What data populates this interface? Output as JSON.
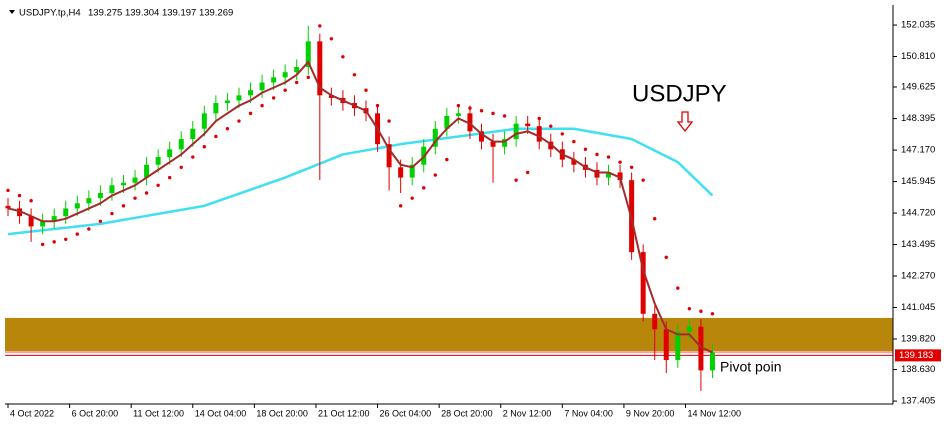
{
  "chart_data": {
    "type": "candlestick",
    "symbol": "USDJPY.tp,H4",
    "ohlc_text": "139.275 139.304 139.197 139.269",
    "annotation": "USDJPY",
    "pivot_label": "Pivot poin",
    "up_color": "#00d000",
    "down_color": "#e00000",
    "x": [
      0,
      3,
      6,
      9,
      12,
      15,
      18,
      21,
      24,
      27,
      30,
      33,
      36,
      39,
      42,
      45,
      48,
      51,
      54,
      57,
      60,
      63,
      66,
      69,
      72,
      75,
      78,
      81,
      84,
      87,
      90,
      93,
      96,
      99,
      102,
      105,
      108,
      111,
      114,
      117,
      120,
      123,
      126,
      129,
      132,
      135,
      138,
      141,
      144,
      147,
      150,
      153,
      156,
      159,
      162,
      165,
      168,
      171,
      174,
      177,
      180,
      183
    ],
    "open": [
      145.0,
      144.9,
      144.6,
      144.2,
      144.4,
      144.6,
      144.9,
      145.1,
      145.3,
      145.5,
      145.8,
      145.9,
      146.1,
      146.6,
      146.9,
      147.2,
      147.6,
      148.0,
      148.6,
      149.0,
      149.1,
      149.3,
      149.5,
      149.8,
      150.0,
      150.2,
      150.4,
      151.4,
      149.3,
      149.2,
      149.0,
      148.8,
      148.6,
      147.4,
      146.5,
      146.1,
      146.6,
      147.3,
      148.0,
      148.5,
      148.6,
      147.9,
      147.5,
      147.3,
      147.6,
      148.2,
      148.1,
      147.5,
      147.2,
      146.8,
      146.6,
      146.4,
      146.1,
      146.3,
      146.0,
      143.2,
      140.8,
      140.2,
      139.0,
      140.1,
      140.3,
      138.6
    ],
    "high": [
      145.3,
      145.2,
      144.9,
      144.7,
      144.9,
      145.2,
      145.4,
      145.6,
      145.8,
      146.1,
      146.2,
      146.4,
      146.9,
      147.2,
      147.5,
      147.9,
      148.3,
      148.9,
      149.3,
      149.4,
      149.6,
      149.8,
      150.1,
      150.3,
      150.5,
      150.7,
      152.0,
      151.7,
      149.6,
      149.5,
      149.3,
      149.1,
      148.9,
      147.7,
      146.8,
      146.9,
      147.6,
      148.3,
      148.8,
      148.9,
      148.9,
      148.2,
      147.8,
      147.9,
      148.5,
      148.5,
      148.4,
      147.8,
      147.5,
      147.1,
      146.9,
      146.7,
      146.6,
      146.6,
      146.3,
      143.5,
      141.1,
      140.5,
      140.4,
      140.6,
      140.6,
      139.6
    ],
    "low": [
      144.6,
      144.3,
      143.6,
      143.9,
      144.1,
      144.3,
      144.6,
      144.8,
      145.0,
      145.2,
      145.5,
      145.6,
      145.8,
      146.3,
      146.6,
      146.9,
      147.3,
      147.7,
      148.3,
      148.7,
      148.8,
      149.0,
      149.2,
      149.5,
      149.7,
      149.9,
      150.1,
      146.0,
      148.9,
      148.7,
      148.5,
      148.3,
      147.1,
      145.6,
      145.5,
      145.8,
      146.3,
      147.0,
      147.7,
      148.2,
      147.6,
      147.2,
      145.9,
      147.0,
      147.3,
      147.8,
      147.2,
      146.9,
      146.5,
      146.3,
      146.1,
      145.8,
      145.8,
      145.7,
      142.9,
      140.5,
      139.0,
      138.5,
      138.7,
      139.8,
      137.8,
      138.3
    ],
    "close": [
      144.9,
      144.6,
      144.2,
      144.4,
      144.6,
      144.9,
      145.1,
      145.3,
      145.5,
      145.8,
      145.9,
      146.1,
      146.6,
      146.9,
      147.2,
      147.6,
      148.0,
      148.6,
      149.0,
      149.1,
      149.3,
      149.5,
      149.8,
      150.0,
      150.2,
      150.4,
      151.4,
      149.3,
      149.2,
      149.0,
      148.8,
      148.6,
      147.4,
      146.5,
      146.1,
      146.6,
      147.3,
      148.0,
      148.5,
      148.6,
      147.9,
      147.5,
      147.3,
      147.6,
      148.2,
      148.1,
      147.5,
      147.2,
      146.8,
      146.6,
      146.4,
      146.1,
      146.3,
      146.0,
      143.2,
      140.8,
      140.2,
      139.0,
      140.1,
      140.3,
      138.6,
      139.3
    ],
    "ma_fast": {
      "color": "#a52a2a",
      "values": [
        144.9,
        144.8,
        144.6,
        144.4,
        144.4,
        144.5,
        144.7,
        144.9,
        145.1,
        145.4,
        145.6,
        145.8,
        146.1,
        146.4,
        146.7,
        147.0,
        147.4,
        147.8,
        148.3,
        148.6,
        148.9,
        149.1,
        149.4,
        149.6,
        149.8,
        150.1,
        150.6,
        149.6,
        149.3,
        149.1,
        148.9,
        148.7,
        148.0,
        147.2,
        146.6,
        146.5,
        146.9,
        147.5,
        148.0,
        148.4,
        148.2,
        147.8,
        147.5,
        147.5,
        147.8,
        147.9,
        147.7,
        147.4,
        147.0,
        146.8,
        146.5,
        146.3,
        146.3,
        146.1,
        144.5,
        142.5,
        141.2,
        140.2,
        140.0,
        140.0,
        139.5,
        139.3
      ]
    },
    "ma_slow": {
      "color": "#40e0f0",
      "x": [
        0,
        24,
        51,
        72,
        87,
        102,
        117,
        132,
        147,
        162,
        174,
        183
      ],
      "values": [
        143.9,
        144.3,
        145.0,
        146.1,
        147.0,
        147.4,
        147.7,
        148.0,
        148.0,
        147.6,
        146.7,
        145.4
      ]
    },
    "sar": {
      "color": "#e00000",
      "values": [
        145.6,
        145.4,
        145.2,
        143.5,
        143.6,
        143.7,
        143.9,
        144.1,
        144.4,
        144.7,
        145.0,
        145.3,
        145.5,
        145.8,
        146.1,
        146.5,
        146.9,
        147.3,
        147.7,
        148.0,
        148.3,
        148.6,
        148.9,
        149.2,
        149.5,
        149.8,
        150.0,
        152.0,
        151.5,
        150.8,
        150.1,
        149.5,
        148.9,
        148.3,
        145.0,
        145.3,
        145.7,
        146.2,
        146.8,
        148.9,
        148.8,
        148.7,
        148.6,
        148.5,
        146.0,
        146.3,
        148.4,
        148.1,
        147.8,
        147.5,
        147.2,
        147.0,
        146.9,
        146.7,
        146.5,
        146.0,
        144.5,
        143.0,
        141.8,
        141.0,
        140.9,
        140.8
      ]
    },
    "zone": {
      "top": 140.64,
      "bottom": 139.35,
      "color": "#b8860b"
    },
    "price_line": 139.183,
    "xlim": [
      -0.78,
      229.9
    ],
    "ylim": [
      137.33,
      152.62
    ],
    "xticks": [
      {
        "value": 0,
        "label": "4 Oct 2022"
      },
      {
        "value": 16,
        "label": "6 Oct 20:00"
      },
      {
        "value": 32,
        "label": "11 Oct 12:00"
      },
      {
        "value": 48,
        "label": "14 Oct 04:00"
      },
      {
        "value": 64,
        "label": "18 Oct 20:00"
      },
      {
        "value": 80,
        "label": "21 Oct 12:00"
      },
      {
        "value": 96,
        "label": "26 Oct 04:00"
      },
      {
        "value": 112,
        "label": "28 Oct 20:00"
      },
      {
        "value": 128,
        "label": "2 Nov 12:00"
      },
      {
        "value": 144,
        "label": "7 Nov 04:00"
      },
      {
        "value": 160,
        "label": "9 Nov 20:00"
      },
      {
        "value": 176,
        "label": "14 Nov 12:00"
      }
    ],
    "yticks": [
      152.035,
      {
        "value": 150.81,
        "label": "150.810"
      },
      149.625,
      148.395,
      {
        "value": 147.17,
        "label": "147.170"
      },
      145.945,
      {
        "value": 144.72,
        "label": "144.720"
      },
      143.495,
      {
        "value": 142.27,
        "label": "142.270"
      },
      141.045,
      {
        "value": 139.82,
        "label": "139.820"
      },
      {
        "value": 138.63,
        "label": "138.630"
      },
      137.405
    ]
  }
}
